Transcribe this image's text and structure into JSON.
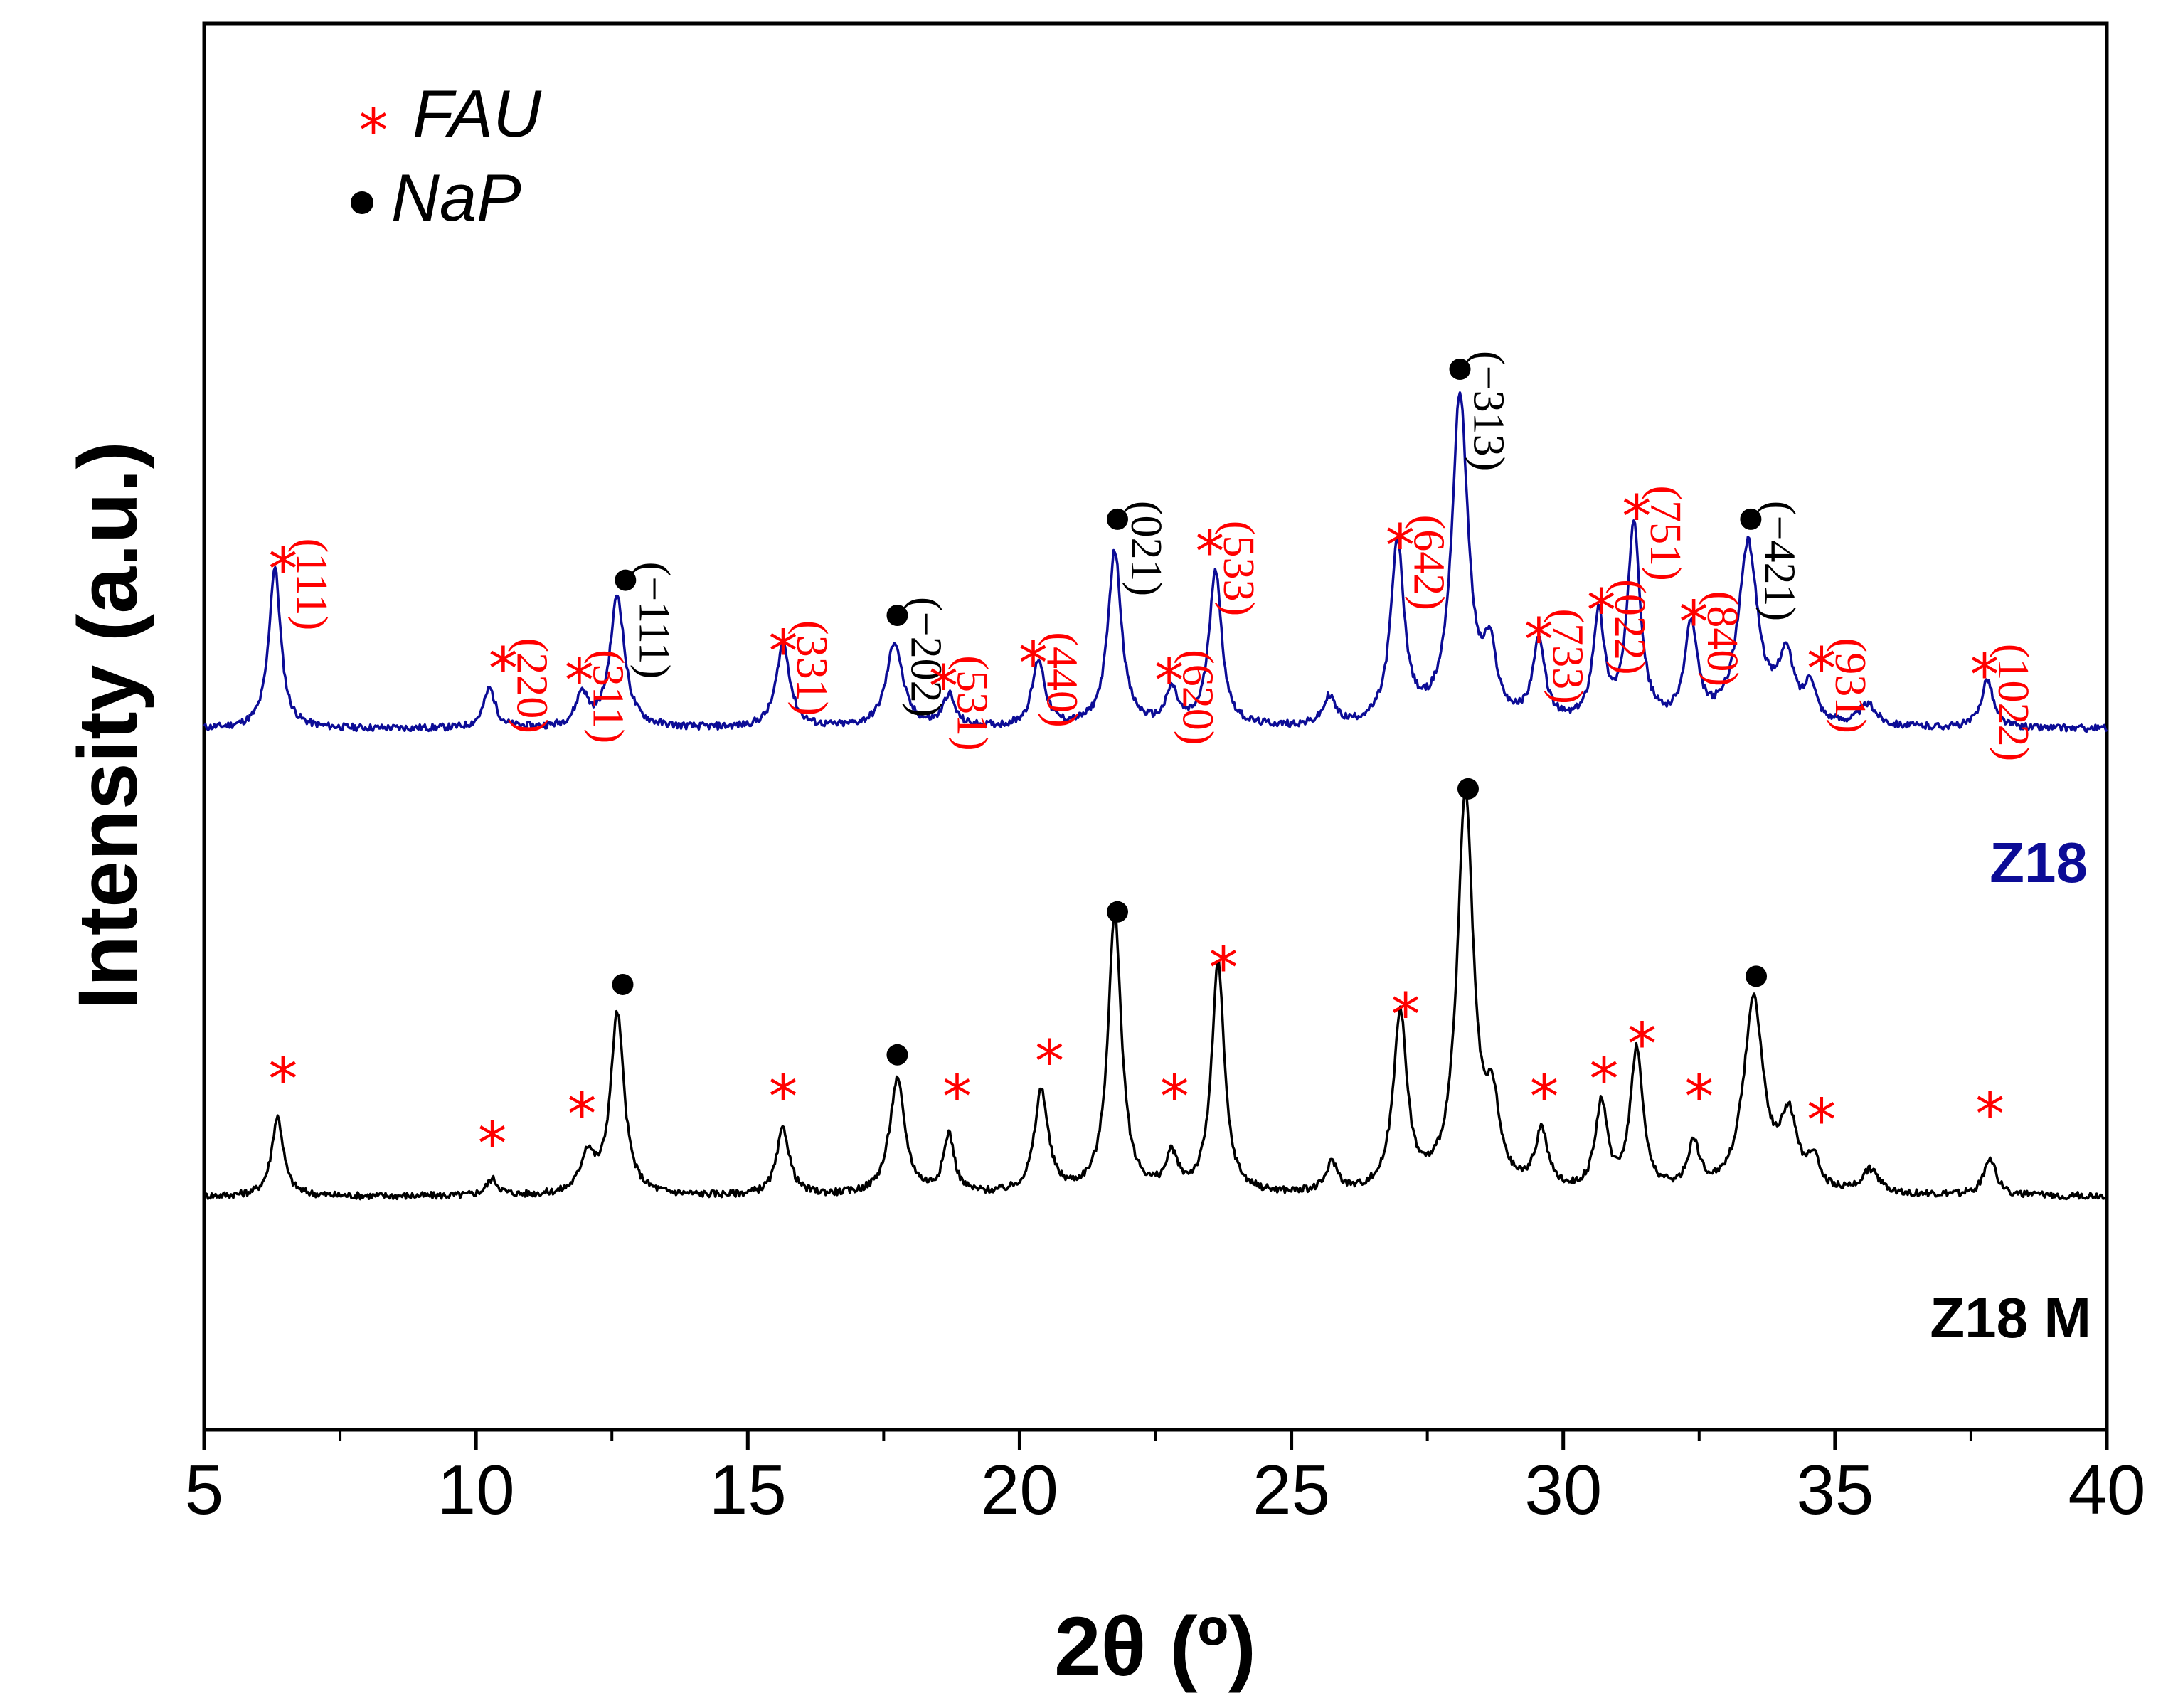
{
  "chart_data": {
    "type": "line",
    "title": "",
    "xlabel": "2θ (º)",
    "ylabel": "Intensity (a.u.)",
    "xlim": [
      5,
      40
    ],
    "ylim": [
      0,
      12
    ],
    "grid": false,
    "xticks": [
      5,
      10,
      15,
      20,
      25,
      30,
      35,
      40
    ],
    "xtick_labels": [
      "5",
      "10",
      "15",
      "20",
      "25",
      "30",
      "35",
      "40"
    ],
    "legend": {
      "position": "top-left",
      "entries": [
        {
          "symbol": "*",
          "symbol_name": "asterisk",
          "label": "FAU",
          "color": "#ff0000"
        },
        {
          "symbol": "●",
          "symbol_name": "filled-circle",
          "label": "NaP",
          "color": "#000000"
        }
      ]
    },
    "colors": {
      "fau": "#ff0000",
      "nap": "#000000",
      "z18": "#0c0c96",
      "z18m": "#000000"
    },
    "series": [
      {
        "name": "Z18",
        "color": "#0c0c96",
        "baseline": 5.98,
        "peaks": [
          {
            "x": 6.3,
            "h": 1.38,
            "w": 0.13
          },
          {
            "x": 10.25,
            "h": 0.34,
            "w": 0.13
          },
          {
            "x": 11.95,
            "h": 0.28,
            "w": 0.13
          },
          {
            "x": 12.6,
            "h": 1.13,
            "w": 0.16
          },
          {
            "x": 15.65,
            "h": 0.72,
            "w": 0.15
          },
          {
            "x": 17.7,
            "h": 0.73,
            "w": 0.18
          },
          {
            "x": 18.7,
            "h": 0.27,
            "w": 0.13
          },
          {
            "x": 20.35,
            "h": 0.57,
            "w": 0.14
          },
          {
            "x": 21.75,
            "h": 1.5,
            "w": 0.15
          },
          {
            "x": 22.8,
            "h": 0.3,
            "w": 0.13
          },
          {
            "x": 23.6,
            "h": 1.34,
            "w": 0.14
          },
          {
            "x": 25.7,
            "h": 0.24,
            "w": 0.13
          },
          {
            "x": 26.95,
            "h": 1.54,
            "w": 0.15
          },
          {
            "x": 28.1,
            "h": 2.8,
            "w": 0.18
          },
          {
            "x": 28.65,
            "h": 0.55,
            "w": 0.15
          },
          {
            "x": 29.55,
            "h": 0.68,
            "w": 0.14
          },
          {
            "x": 30.65,
            "h": 0.92,
            "w": 0.13
          },
          {
            "x": 31.3,
            "h": 1.72,
            "w": 0.14
          },
          {
            "x": 32.35,
            "h": 0.83,
            "w": 0.14
          },
          {
            "x": 33.4,
            "h": 1.54,
            "w": 0.22
          },
          {
            "x": 34.1,
            "h": 0.55,
            "w": 0.18
          },
          {
            "x": 34.55,
            "h": 0.32,
            "w": 0.12
          },
          {
            "x": 35.6,
            "h": 0.18,
            "w": 0.2
          },
          {
            "x": 37.8,
            "h": 0.42,
            "w": 0.13
          }
        ]
      },
      {
        "name": "Z18 M",
        "color": "#000000",
        "baseline": 1.99,
        "peaks": [
          {
            "x": 6.35,
            "h": 0.68,
            "w": 0.13
          },
          {
            "x": 10.3,
            "h": 0.14,
            "w": 0.13
          },
          {
            "x": 12.05,
            "h": 0.33,
            "w": 0.15
          },
          {
            "x": 12.6,
            "h": 1.55,
            "w": 0.15
          },
          {
            "x": 15.65,
            "h": 0.57,
            "w": 0.14
          },
          {
            "x": 17.75,
            "h": 0.98,
            "w": 0.17
          },
          {
            "x": 18.7,
            "h": 0.5,
            "w": 0.12
          },
          {
            "x": 20.4,
            "h": 0.88,
            "w": 0.15
          },
          {
            "x": 21.75,
            "h": 2.38,
            "w": 0.15
          },
          {
            "x": 22.8,
            "h": 0.3,
            "w": 0.13
          },
          {
            "x": 23.65,
            "h": 1.97,
            "w": 0.14
          },
          {
            "x": 25.75,
            "h": 0.25,
            "w": 0.13
          },
          {
            "x": 27.0,
            "h": 1.52,
            "w": 0.15
          },
          {
            "x": 28.2,
            "h": 3.38,
            "w": 0.18
          },
          {
            "x": 28.7,
            "h": 0.63,
            "w": 0.15
          },
          {
            "x": 29.6,
            "h": 0.5,
            "w": 0.14
          },
          {
            "x": 30.7,
            "h": 0.75,
            "w": 0.13
          },
          {
            "x": 31.35,
            "h": 1.22,
            "w": 0.14
          },
          {
            "x": 32.4,
            "h": 0.4,
            "w": 0.13
          },
          {
            "x": 33.5,
            "h": 1.65,
            "w": 0.22
          },
          {
            "x": 34.15,
            "h": 0.6,
            "w": 0.18
          },
          {
            "x": 34.6,
            "h": 0.26,
            "w": 0.12
          },
          {
            "x": 35.65,
            "h": 0.2,
            "w": 0.2
          },
          {
            "x": 37.85,
            "h": 0.33,
            "w": 0.13
          }
        ]
      }
    ],
    "annotations_z18": [
      {
        "x": 6.45,
        "y": 7.45,
        "phase": "FAU",
        "hkl": "(111)"
      },
      {
        "x": 10.5,
        "y": 6.6,
        "phase": "FAU",
        "hkl": "(220)"
      },
      {
        "x": 11.9,
        "y": 6.5,
        "phase": "FAU",
        "hkl": "(311)"
      },
      {
        "x": 12.75,
        "y": 7.25,
        "phase": "NaP",
        "hkl": "(−111)"
      },
      {
        "x": 15.65,
        "y": 6.75,
        "phase": "FAU",
        "hkl": "(331)"
      },
      {
        "x": 17.75,
        "y": 6.95,
        "phase": "NaP",
        "hkl": "(−202)"
      },
      {
        "x": 18.6,
        "y": 6.45,
        "phase": "FAU",
        "hkl": "(531)"
      },
      {
        "x": 20.25,
        "y": 6.65,
        "phase": "FAU",
        "hkl": "(440)"
      },
      {
        "x": 21.8,
        "y": 7.77,
        "phase": "NaP",
        "hkl": "(021)"
      },
      {
        "x": 22.75,
        "y": 6.5,
        "phase": "FAU",
        "hkl": "(620)"
      },
      {
        "x": 23.5,
        "y": 7.6,
        "phase": "FAU",
        "hkl": "(533)"
      },
      {
        "x": 27.0,
        "y": 7.65,
        "phase": "FAU",
        "hkl": "(642)"
      },
      {
        "x": 28.1,
        "y": 9.05,
        "phase": "NaP",
        "hkl": "(−313)"
      },
      {
        "x": 29.55,
        "y": 6.85,
        "phase": "FAU",
        "hkl": "(733)"
      },
      {
        "x": 30.7,
        "y": 7.1,
        "phase": "FAU",
        "hkl": "(022)"
      },
      {
        "x": 31.35,
        "y": 7.9,
        "phase": "FAU",
        "hkl": "(751)"
      },
      {
        "x": 32.4,
        "y": 7.0,
        "phase": "FAU",
        "hkl": "(840)"
      },
      {
        "x": 33.45,
        "y": 7.77,
        "phase": "NaP",
        "hkl": "(−421)"
      },
      {
        "x": 34.75,
        "y": 6.6,
        "phase": "FAU",
        "hkl": "(931)"
      },
      {
        "x": 37.75,
        "y": 6.55,
        "phase": "FAU",
        "hkl": "(1022)"
      }
    ],
    "annotations_z18m": [
      {
        "x": 6.45,
        "y": 3.1,
        "phase": "FAU"
      },
      {
        "x": 10.3,
        "y": 2.55,
        "phase": "FAU"
      },
      {
        "x": 11.95,
        "y": 2.8,
        "phase": "FAU"
      },
      {
        "x": 12.7,
        "y": 3.8,
        "phase": "NaP"
      },
      {
        "x": 15.65,
        "y": 2.95,
        "phase": "FAU"
      },
      {
        "x": 17.75,
        "y": 3.2,
        "phase": "NaP"
      },
      {
        "x": 18.85,
        "y": 2.95,
        "phase": "FAU"
      },
      {
        "x": 20.55,
        "y": 3.25,
        "phase": "FAU"
      },
      {
        "x": 21.8,
        "y": 4.42,
        "phase": "NaP"
      },
      {
        "x": 22.85,
        "y": 2.95,
        "phase": "FAU"
      },
      {
        "x": 23.75,
        "y": 4.05,
        "phase": "FAU"
      },
      {
        "x": 27.1,
        "y": 3.65,
        "phase": "FAU"
      },
      {
        "x": 28.25,
        "y": 5.47,
        "phase": "NaP"
      },
      {
        "x": 29.65,
        "y": 2.95,
        "phase": "FAU"
      },
      {
        "x": 30.75,
        "y": 3.1,
        "phase": "FAU"
      },
      {
        "x": 31.45,
        "y": 3.4,
        "phase": "FAU"
      },
      {
        "x": 32.5,
        "y": 2.95,
        "phase": "FAU"
      },
      {
        "x": 33.55,
        "y": 3.87,
        "phase": "NaP"
      },
      {
        "x": 34.75,
        "y": 2.75,
        "phase": "FAU"
      },
      {
        "x": 37.85,
        "y": 2.8,
        "phase": "FAU"
      }
    ]
  }
}
